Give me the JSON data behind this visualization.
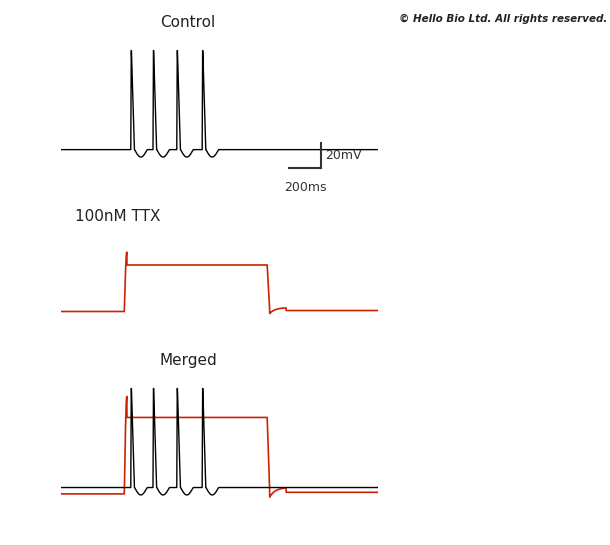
{
  "title_control": "Control",
  "title_ttx": "100nM TTX",
  "title_merged": "Merged",
  "copyright": "© Hello Bio Ltd. All rights reserved.",
  "scale_bar_mv": "20mV",
  "scale_bar_ms": "200ms",
  "bg_color": "#ffffff",
  "control_color": "#000000",
  "ttx_color": "#cc2200",
  "fig_width": 6.1,
  "fig_height": 5.45,
  "dpi": 100
}
